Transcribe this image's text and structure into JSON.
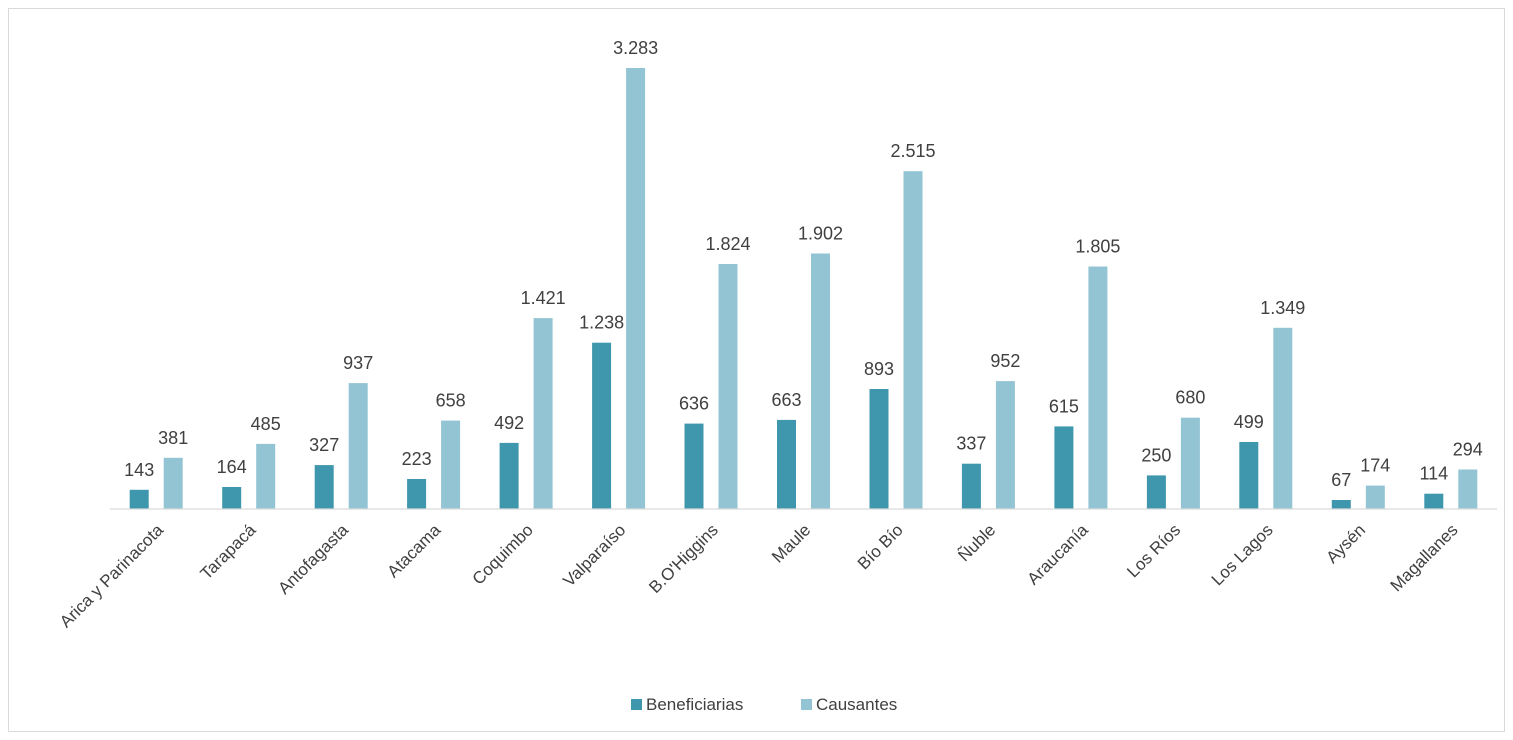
{
  "chart_data": {
    "type": "bar",
    "categories": [
      "Arica y Parinacota",
      "Tarapacá",
      "Antofagasta",
      "Atacama",
      "Coquimbo",
      "Valparaíso",
      "B.O'Higgins",
      "Maule",
      "Bío Bío",
      "Ñuble",
      "Araucanía",
      "Los Ríos",
      "Los Lagos",
      "Aysén",
      "Magallanes"
    ],
    "series": [
      {
        "name": "Beneficiarias",
        "color": "#3e97ac",
        "values": [
          143,
          164,
          327,
          223,
          492,
          1238,
          636,
          663,
          893,
          337,
          615,
          250,
          499,
          67,
          114
        ],
        "labels": [
          "143",
          "164",
          "327",
          "223",
          "492",
          "1.238",
          "636",
          "663",
          "893",
          "337",
          "615",
          "250",
          "499",
          "67",
          "114"
        ]
      },
      {
        "name": "Causantes",
        "color": "#93c4d4",
        "values": [
          381,
          485,
          937,
          658,
          1421,
          3283,
          1824,
          1902,
          2515,
          952,
          1805,
          680,
          1349,
          174,
          294
        ],
        "labels": [
          "381",
          "485",
          "937",
          "658",
          "1.421",
          "3.283",
          "1.824",
          "1.902",
          "2.515",
          "952",
          "1.805",
          "680",
          "1.349",
          "174",
          "294"
        ]
      }
    ],
    "title": "",
    "xlabel": "",
    "ylabel": "",
    "ylim": [
      0,
      3283
    ],
    "grid": false,
    "legend_position": "bottom"
  }
}
